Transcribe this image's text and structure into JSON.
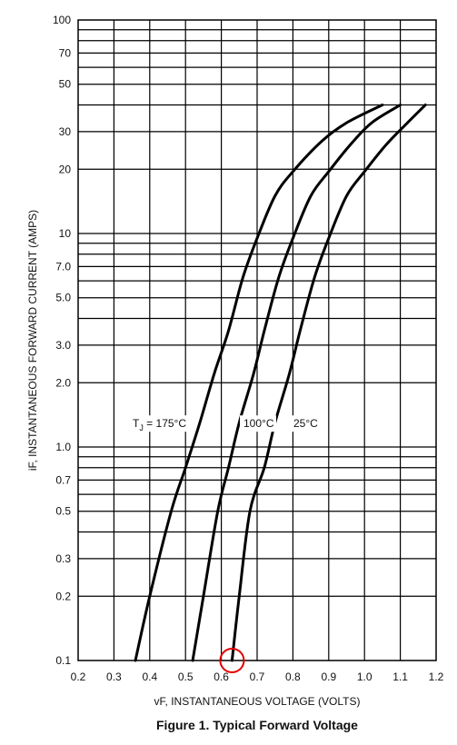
{
  "chart_data": {
    "type": "line",
    "title": "Figure 1. Typical Forward Voltage",
    "xlabel": "vF, INSTANTANEOUS VOLTAGE (VOLTS)",
    "ylabel": "iF, INSTANTANEOUS FORWARD CURRENT (AMPS)",
    "xlim": [
      0.2,
      1.2
    ],
    "ylim": [
      0.1,
      100
    ],
    "yscale": "log",
    "grid": true,
    "x_ticks": [
      "0.2",
      "0.3",
      "0.4",
      "0.5",
      "0.6",
      "0.7",
      "0.8",
      "0.9",
      "1.0",
      "1.1",
      "1.2"
    ],
    "y_ticks": [
      "0.1",
      "0.2",
      "0.3",
      "0.5",
      "0.7",
      "1.0",
      "2.0",
      "3.0",
      "5.0",
      "7.0",
      "10",
      "20",
      "30",
      "50",
      "70",
      "100"
    ],
    "series": [
      {
        "name": "TJ = 175°C",
        "points": [
          [
            0.36,
            0.1
          ],
          [
            0.4,
            0.2
          ],
          [
            0.46,
            0.5
          ],
          [
            0.5,
            0.8
          ],
          [
            0.54,
            1.3
          ],
          [
            0.58,
            2.2
          ],
          [
            0.62,
            3.5
          ],
          [
            0.66,
            6.2
          ],
          [
            0.7,
            9.5
          ],
          [
            0.75,
            15
          ],
          [
            0.8,
            19.5
          ],
          [
            0.88,
            27
          ],
          [
            0.95,
            33
          ],
          [
            1.05,
            40
          ]
        ]
      },
      {
        "name": "100°C",
        "points": [
          [
            0.52,
            0.1
          ],
          [
            0.55,
            0.2
          ],
          [
            0.59,
            0.5
          ],
          [
            0.62,
            0.8
          ],
          [
            0.65,
            1.3
          ],
          [
            0.69,
            2.2
          ],
          [
            0.72,
            3.5
          ],
          [
            0.76,
            6.2
          ],
          [
            0.8,
            9.5
          ],
          [
            0.85,
            15
          ],
          [
            0.9,
            19.5
          ],
          [
            0.96,
            26
          ],
          [
            1.02,
            33
          ],
          [
            1.1,
            40
          ]
        ]
      },
      {
        "name": "25°C",
        "points": [
          [
            0.63,
            0.1
          ],
          [
            0.65,
            0.2
          ],
          [
            0.68,
            0.5
          ],
          [
            0.72,
            0.8
          ],
          [
            0.75,
            1.3
          ],
          [
            0.79,
            2.2
          ],
          [
            0.82,
            3.5
          ],
          [
            0.86,
            6.2
          ],
          [
            0.9,
            9.5
          ],
          [
            0.95,
            15
          ],
          [
            1.0,
            19.5
          ],
          [
            1.06,
            26
          ],
          [
            1.12,
            33
          ],
          [
            1.17,
            40
          ]
        ]
      }
    ],
    "series_labels": {
      "tj": "T",
      "tj_sub": "J",
      "tj_rest": " = 175°C",
      "t100": "100°C",
      "t25": "25°C"
    },
    "annotation": {
      "type": "circle",
      "color": "#e00000",
      "x": 0.63,
      "y": 0.1
    },
    "line_color": "#000000",
    "grid_color": "#000000"
  }
}
